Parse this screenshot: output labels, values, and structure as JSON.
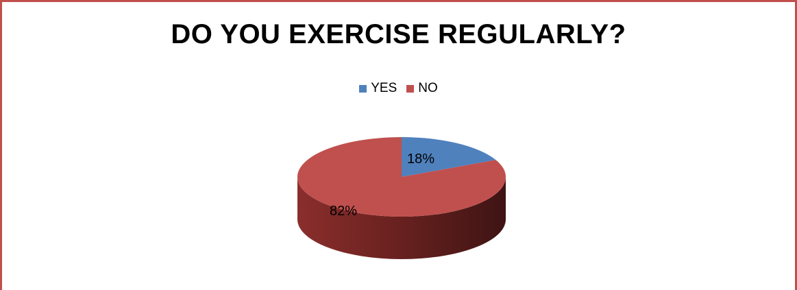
{
  "chart_data": {
    "type": "pie",
    "title": "DO YOU EXERCISE REGULARLY?",
    "legend_position": "top",
    "series": [
      {
        "name": "YES",
        "value": 18,
        "label": "18%",
        "color": "#4f81bd"
      },
      {
        "name": "NO",
        "value": 82,
        "label": "82%",
        "color": "#c0504d"
      }
    ]
  },
  "frame_color": "#c0504d"
}
